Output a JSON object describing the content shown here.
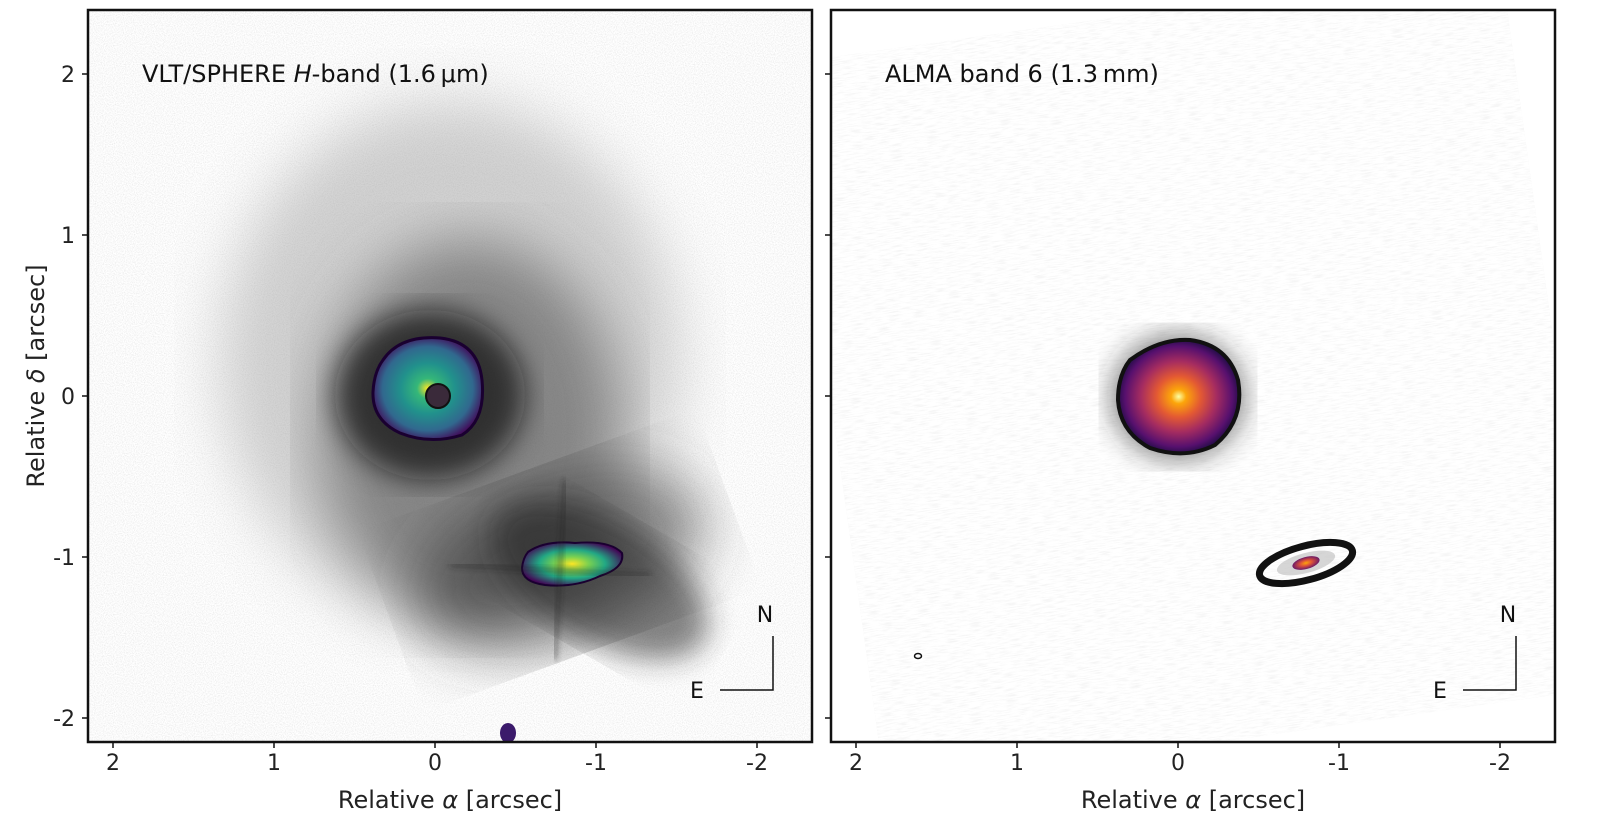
{
  "panels": [
    {
      "id": "left",
      "title_prefix": "VLT/SPHERE ",
      "title_italic": "H",
      "title_suffix": "-band (1.6 μm)",
      "xlabel_prefix": "Relative ",
      "xlabel_symbol": "α",
      "xlabel_suffix": " [arcsec]",
      "ylabel_prefix": "Relative ",
      "ylabel_symbol": "δ",
      "ylabel_suffix": " [arcsec]",
      "xticks": [
        "2",
        "1",
        "0",
        "-1",
        "-2"
      ],
      "yticks": [
        "2",
        "1",
        "0",
        "-1",
        "-2"
      ],
      "compass": {
        "north": "N",
        "east": "E"
      }
    },
    {
      "id": "right",
      "title": "ALMA band 6 (1.3 mm)",
      "xlabel_prefix": "Relative ",
      "xlabel_symbol": "α",
      "xlabel_suffix": " [arcsec]",
      "xticks": [
        "2",
        "1",
        "0",
        "-1",
        "-2"
      ],
      "compass": {
        "north": "N",
        "east": "E"
      }
    }
  ],
  "colors": {
    "frame": "#111111",
    "background_noise": "#d8d8d8",
    "viridis_dark": "#440154",
    "viridis_mid": "#31688e",
    "viridis_teal": "#35b779",
    "viridis_yellow": "#fde725",
    "inferno_dark": "#1b0c41",
    "inferno_mid": "#b5367a",
    "inferno_bright": "#fca50a",
    "inferno_hot": "#fcffa4"
  }
}
